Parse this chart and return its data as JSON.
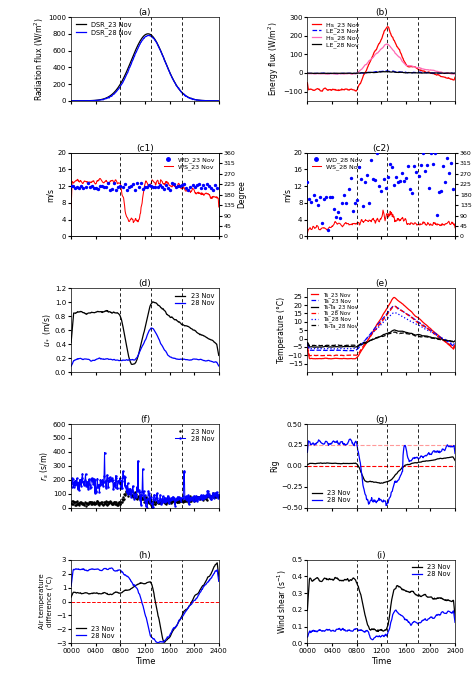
{
  "time_ticks": [
    "0000",
    "0400",
    "0800",
    "1200",
    "1600",
    "2000",
    "2400"
  ],
  "time_vals": [
    0,
    400,
    800,
    1200,
    1600,
    2000,
    2400
  ],
  "vlines": [
    800,
    1300,
    1800
  ],
  "panel_labels": [
    "(a)",
    "(b)",
    "(c1)",
    "(c2)",
    "(d)",
    "(e)",
    "(f)",
    "(g)",
    "(h)",
    "(i)"
  ]
}
